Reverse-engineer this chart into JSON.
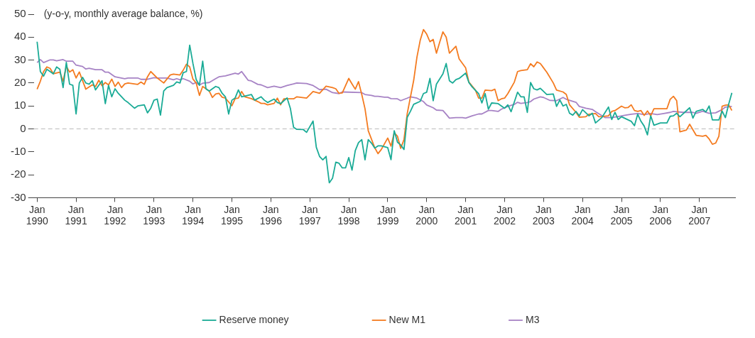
{
  "chart_data": {
    "type": "line",
    "ylabel": "(y-o-y, monthly average balance, %)",
    "xlim": [
      "1989-12",
      "2007-12"
    ],
    "xticks": [
      {
        "value": "1990-01",
        "label": "Jan 1990"
      },
      {
        "value": "1991-01",
        "label": "Jan 1991"
      },
      {
        "value": "1992-01",
        "label": "Jan 1992"
      },
      {
        "value": "1993-01",
        "label": "Jan 1993"
      },
      {
        "value": "1994-01",
        "label": "Jan 1994"
      },
      {
        "value": "1995-01",
        "label": "Jan 1995"
      },
      {
        "value": "1996-01",
        "label": "Jan 1996"
      },
      {
        "value": "1997-01",
        "label": "Jan 1997"
      },
      {
        "value": "1998-01",
        "label": "Jan 1998"
      },
      {
        "value": "1999-01",
        "label": "Jan 1999"
      },
      {
        "value": "2000-01",
        "label": "Jan 2000"
      },
      {
        "value": "2001-01",
        "label": "Jan 2001"
      },
      {
        "value": "2002-01",
        "label": "Jan 2002"
      },
      {
        "value": "2003-01",
        "label": "Jan 2003"
      },
      {
        "value": "2004-01",
        "label": "Jan 2004"
      },
      {
        "value": "2005-01",
        "label": "Jan 2005"
      },
      {
        "value": "2006-01",
        "label": "Jan 2006"
      },
      {
        "value": "2007-01",
        "label": "Jan 2007"
      }
    ],
    "ylim": [
      -30,
      50
    ],
    "yticks": [
      -30,
      -20,
      -10,
      0,
      10,
      20,
      30,
      40,
      50
    ],
    "grid": false,
    "legend": "bottom",
    "ref_lines": [
      {
        "axis": "y",
        "value": 0,
        "color": "#bbbbbb",
        "line_style": "dashed"
      }
    ],
    "series": [
      {
        "name": "Reserve money",
        "color": "#1aab96",
        "x": [
          "1990-01",
          "1990-02",
          "1990-03",
          "1990-04",
          "1990-06",
          "1990-07",
          "1990-08",
          "1990-09",
          "1990-10",
          "1990-11",
          "1990-12",
          "1991-01",
          "1991-02",
          "1991-03",
          "1991-04",
          "1991-05",
          "1991-06",
          "1991-07",
          "1991-09",
          "1991-10",
          "1991-11",
          "1991-12",
          "1992-01",
          "1992-02",
          "1992-04",
          "1992-05",
          "1992-07",
          "1992-08",
          "1992-10",
          "1992-11",
          "1992-12",
          "1993-01",
          "1993-02",
          "1993-03",
          "1993-04",
          "1993-05",
          "1993-07",
          "1993-08",
          "1993-09",
          "1993-10",
          "1993-11",
          "1993-12",
          "1994-01",
          "1994-02",
          "1994-03",
          "1994-04",
          "1994-05",
          "1994-06",
          "1994-08",
          "1994-09",
          "1994-10",
          "1994-11",
          "1994-12",
          "1995-01",
          "1995-02",
          "1995-03",
          "1995-04",
          "1995-07",
          "1995-08",
          "1995-10",
          "1995-11",
          "1995-12",
          "1996-02",
          "1996-03",
          "1996-04",
          "1996-06",
          "1996-07",
          "1996-08",
          "1996-09",
          "1996-11",
          "1996-12",
          "1997-02",
          "1997-03",
          "1997-04",
          "1997-05",
          "1997-06",
          "1997-07",
          "1997-08",
          "1997-09",
          "1997-10",
          "1997-11",
          "1997-12",
          "1998-01",
          "1998-02",
          "1998-03",
          "1998-04",
          "1998-05",
          "1998-06",
          "1998-07",
          "1998-08",
          "1998-09",
          "1998-10",
          "1998-11",
          "1999-01",
          "1999-02",
          "1999-03",
          "1999-04",
          "1999-05",
          "1999-06",
          "1999-07",
          "1999-08",
          "1999-09",
          "1999-11",
          "1999-12",
          "2000-01",
          "2000-02",
          "2000-03",
          "2000-04",
          "2000-06",
          "2000-07",
          "2000-08",
          "2000-09",
          "2000-10",
          "2000-11",
          "2001-01",
          "2001-02",
          "2001-03",
          "2001-05",
          "2001-06",
          "2001-07",
          "2001-08",
          "2001-09",
          "2001-11",
          "2001-12",
          "2002-01",
          "2002-02",
          "2002-03",
          "2002-05",
          "2002-06",
          "2002-07",
          "2002-08",
          "2002-09",
          "2002-10",
          "2002-11",
          "2002-12",
          "2003-02",
          "2003-04",
          "2003-05",
          "2003-06",
          "2003-07",
          "2003-08",
          "2003-09",
          "2003-10",
          "2003-11",
          "2003-12",
          "2004-01",
          "2004-03",
          "2004-04",
          "2004-05",
          "2004-07",
          "2004-09",
          "2004-10",
          "2004-11",
          "2004-12",
          "2005-01",
          "2005-04",
          "2005-05",
          "2005-06",
          "2005-07",
          "2005-08",
          "2005-09",
          "2005-10",
          "2005-11",
          "2006-01",
          "2006-03",
          "2006-04",
          "2006-05",
          "2006-06",
          "2006-07",
          "2006-10",
          "2006-11",
          "2006-12",
          "2007-02",
          "2007-03",
          "2007-04",
          "2007-05",
          "2007-07",
          "2007-08",
          "2007-09",
          "2007-10",
          "2007-11"
        ],
        "values": [
          38,
          25,
          23,
          26,
          24,
          27,
          26,
          18,
          29,
          19.5,
          19,
          6.5,
          20,
          22.5,
          20,
          19.5,
          21,
          17,
          21,
          11,
          19,
          14,
          17.5,
          15.5,
          12.5,
          11.5,
          9,
          10,
          10.5,
          7,
          9,
          12.5,
          13,
          6,
          16.5,
          18,
          19,
          20.5,
          20,
          24.5,
          25,
          36.5,
          28.5,
          21.5,
          19,
          29.5,
          17.5,
          16.5,
          18.5,
          18,
          15.5,
          14,
          6.5,
          12.5,
          13.5,
          17,
          14,
          15,
          12.5,
          14,
          12.5,
          11.5,
          13,
          11.5,
          11,
          13.5,
          9,
          0.7,
          -0.2,
          -0.3,
          -1.5,
          3.4,
          -8,
          -12,
          -13.5,
          -12,
          -23.5,
          -21.5,
          -14.5,
          -15,
          -17,
          -17,
          -12.5,
          -18,
          -9.5,
          -6,
          -4.7,
          -13.5,
          -4.7,
          -6.2,
          -8.4,
          -7.4,
          -7.4,
          -8.2,
          -13.4,
          -0.8,
          -5.8,
          -7,
          -9,
          5,
          7.7,
          10.7,
          12,
          15.4,
          16,
          22,
          12.3,
          19.5,
          24,
          28.5,
          21,
          20,
          21.5,
          22,
          24.3,
          20.2,
          18.3,
          15.4,
          11.3,
          15.4,
          8.6,
          11.3,
          11,
          10,
          9,
          10.5,
          7.5,
          16,
          14,
          14,
          7.2,
          20.2,
          17.5,
          17,
          17.7,
          15,
          15.2,
          9.8,
          12.6,
          10,
          10.7,
          6.8,
          6,
          7.6,
          5.7,
          8.4,
          5.7,
          6.8,
          2.6,
          5,
          9.5,
          4.1,
          7.2,
          4.1,
          5.3,
          3.3,
          1.4,
          6.4,
          3.3,
          1.2,
          -2.6,
          5.7,
          1.6,
          2.6,
          2.6,
          5.5,
          5.7,
          6.8,
          5.3,
          9.2,
          4.7,
          7.6,
          8.5,
          7.4,
          10,
          3.9,
          3.9,
          7.8,
          4.9,
          10.7,
          15.7
        ]
      },
      {
        "name": "New M1",
        "color": "#f47b20",
        "x": [
          "1990-01",
          "1990-02",
          "1990-03",
          "1990-04",
          "1990-05",
          "1990-06",
          "1990-08",
          "1990-09",
          "1990-10",
          "1990-11",
          "1990-12",
          "1991-01",
          "1991-02",
          "1991-04",
          "1991-06",
          "1991-07",
          "1991-08",
          "1991-09",
          "1991-10",
          "1991-11",
          "1991-12",
          "1992-01",
          "1992-02",
          "1992-03",
          "1992-04",
          "1992-05",
          "1992-08",
          "1992-09",
          "1992-10",
          "1992-11",
          "1992-12",
          "1993-02",
          "1993-04",
          "1993-06",
          "1993-07",
          "1993-09",
          "1993-10",
          "1993-11",
          "1993-12",
          "1994-01",
          "1994-02",
          "1994-03",
          "1994-04",
          "1994-06",
          "1994-07",
          "1994-08",
          "1994-09",
          "1994-10",
          "1994-11",
          "1995-01",
          "1995-02",
          "1995-03",
          "1995-04",
          "1995-05",
          "1995-07",
          "1995-09",
          "1995-10",
          "1995-11",
          "1995-12",
          "1996-02",
          "1996-03",
          "1996-04",
          "1996-05",
          "1996-08",
          "1996-09",
          "1996-12",
          "1997-02",
          "1997-04",
          "1997-06",
          "1997-08",
          "1997-09",
          "1997-10",
          "1997-11",
          "1998-01",
          "1998-02",
          "1998-03",
          "1998-04",
          "1998-05",
          "1998-06",
          "1998-07",
          "1998-09",
          "1998-10",
          "1998-11",
          "1999-01",
          "1999-02",
          "1999-03",
          "1999-04",
          "1999-05",
          "1999-06",
          "1999-07",
          "1999-09",
          "1999-10",
          "1999-11",
          "1999-12",
          "2000-01",
          "2000-02",
          "2000-03",
          "2000-04",
          "2000-05",
          "2000-06",
          "2000-07",
          "2000-08",
          "2000-10",
          "2000-11",
          "2001-01",
          "2001-02",
          "2001-04",
          "2001-05",
          "2001-06",
          "2001-07",
          "2001-09",
          "2001-10",
          "2001-11",
          "2001-12",
          "2002-01",
          "2002-02",
          "2002-04",
          "2002-05",
          "2002-06",
          "2002-08",
          "2002-09",
          "2002-10",
          "2002-11",
          "2002-12",
          "2003-02",
          "2003-04",
          "2003-05",
          "2003-07",
          "2003-08",
          "2003-09",
          "2003-11",
          "2003-12",
          "2004-02",
          "2004-03",
          "2004-05",
          "2004-06",
          "2004-07",
          "2004-09",
          "2004-10",
          "2004-11",
          "2005-01",
          "2005-02",
          "2005-03",
          "2005-04",
          "2005-05",
          "2005-06",
          "2005-07",
          "2005-08",
          "2005-09",
          "2005-10",
          "2005-11",
          "2006-01",
          "2006-03",
          "2006-04",
          "2006-05",
          "2006-06",
          "2006-07",
          "2006-09",
          "2006-10",
          "2006-12",
          "2007-02",
          "2007-03",
          "2007-04",
          "2007-05",
          "2007-06",
          "2007-07",
          "2007-08",
          "2007-09",
          "2007-10",
          "2007-11"
        ],
        "values": [
          17.3,
          20.8,
          25,
          27,
          26.4,
          24,
          24.7,
          20.8,
          27.3,
          24.8,
          25.8,
          22.2,
          24.8,
          17.3,
          19.2,
          18.5,
          21.2,
          18.8,
          20.2,
          19.2,
          21.7,
          18.5,
          20.4,
          18,
          19.6,
          20,
          19.4,
          20.4,
          19.4,
          22.7,
          25,
          22.2,
          20,
          23.5,
          23.9,
          23.5,
          25.6,
          28.2,
          27,
          21.7,
          20,
          14.6,
          18.5,
          16.5,
          13.7,
          15.2,
          15.5,
          13.8,
          13.4,
          10.1,
          13.2,
          13.4,
          16.3,
          14,
          13.2,
          11.9,
          11.1,
          11.1,
          10.5,
          11.1,
          13.4,
          10.5,
          13.1,
          13.1,
          14,
          13.4,
          16.3,
          15.5,
          18.6,
          18,
          17.5,
          15.5,
          15.7,
          22,
          19.6,
          17.3,
          20.6,
          15,
          8.8,
          -0.8,
          -8.2,
          -10.8,
          -9,
          -4,
          -7.5,
          -1.7,
          -3.2,
          -8.5,
          -4.7,
          6.6,
          21.2,
          31.3,
          38.6,
          43.3,
          41.3,
          38,
          39,
          33,
          37.8,
          42.3,
          40,
          33,
          36,
          30.5,
          26.6,
          20.4,
          16.9,
          13.4,
          13.4,
          16.9,
          16.7,
          17.3,
          12.3,
          13.1,
          13.4,
          15.4,
          20.4,
          25,
          25.4,
          25.8,
          28.4,
          27.1,
          29.2,
          28.5,
          24.7,
          20,
          16.9,
          16.1,
          15,
          10.5,
          7.2,
          5.1,
          5.3,
          6.4,
          6.7,
          5.3,
          5.4,
          5.7,
          7.6,
          8,
          9.9,
          9.2,
          9.3,
          10.5,
          8,
          7.6,
          8,
          5.9,
          7.8,
          5.7,
          8.8,
          8.8,
          8.8,
          12.9,
          14.2,
          12.3,
          -1.3,
          -0.5,
          2,
          -2.8,
          -3.2,
          -2.8,
          -4.4,
          -6.7,
          -6.2,
          -3.2,
          9.9,
          10.3,
          10.5,
          8
        ]
      },
      {
        "name": "M3",
        "color": "#a783c5",
        "x": [
          "1990-01",
          "1990-02",
          "1990-03",
          "1990-05",
          "1990-06",
          "1990-07",
          "1990-09",
          "1990-10",
          "1990-12",
          "1991-01",
          "1991-03",
          "1991-04",
          "1991-05",
          "1991-07",
          "1991-09",
          "1991-10",
          "1991-11",
          "1992-01",
          "1992-04",
          "1992-05",
          "1992-08",
          "1992-09",
          "1992-11",
          "1993-01",
          "1993-02",
          "1993-05",
          "1993-07",
          "1993-08",
          "1993-09",
          "1993-10",
          "1993-12",
          "1994-01",
          "1994-02",
          "1994-03",
          "1994-04",
          "1994-06",
          "1994-08",
          "1994-09",
          "1994-11",
          "1995-02",
          "1995-03",
          "1995-04",
          "1995-05",
          "1995-06",
          "1995-07",
          "1995-09",
          "1995-10",
          "1995-12",
          "1996-02",
          "1996-03",
          "1996-04",
          "1996-06",
          "1996-08",
          "1996-09",
          "1996-12",
          "1997-02",
          "1997-03",
          "1997-04",
          "1997-06",
          "1997-08",
          "1997-10",
          "1997-11",
          "1998-05",
          "1998-06",
          "1998-08",
          "1998-09",
          "1998-10",
          "1998-12",
          "1999-01",
          "1999-02",
          "1999-04",
          "1999-05",
          "1999-07",
          "1999-08",
          "1999-10",
          "1999-12",
          "2000-01",
          "2000-03",
          "2000-04",
          "2000-06",
          "2000-07",
          "2000-08",
          "2000-10",
          "2000-12",
          "2001-01",
          "2001-03",
          "2001-05",
          "2001-06",
          "2001-08",
          "2001-09",
          "2001-11",
          "2001-12",
          "2002-02",
          "2002-04",
          "2002-05",
          "2002-06",
          "2002-08",
          "2002-09",
          "2002-10",
          "2002-12",
          "2003-01",
          "2003-03",
          "2003-05",
          "2003-07",
          "2003-08",
          "2003-11",
          "2003-12",
          "2004-02",
          "2004-04",
          "2004-05",
          "2004-07",
          "2004-08",
          "2004-10",
          "2004-12",
          "2005-02",
          "2005-04",
          "2005-06",
          "2005-08",
          "2005-10",
          "2005-12",
          "2006-02",
          "2006-04",
          "2006-05",
          "2006-08",
          "2006-11",
          "2006-12",
          "2007-02",
          "2007-04",
          "2007-06",
          "2007-08",
          "2007-09",
          "2007-11"
        ],
        "values": [
          28.9,
          30.2,
          28.9,
          30.1,
          30.1,
          29.7,
          30.2,
          29.5,
          29.5,
          27.8,
          27.2,
          26.1,
          26.4,
          25.8,
          25.8,
          24.7,
          24.7,
          22.7,
          21.9,
          22.2,
          22.2,
          21.6,
          21.6,
          22.3,
          22.2,
          22.2,
          21.4,
          21.9,
          21.4,
          21.9,
          20.8,
          19.6,
          20.2,
          19.1,
          19.9,
          20.2,
          21.9,
          22.7,
          23.1,
          24.3,
          23.9,
          25,
          23.1,
          21.2,
          20.9,
          19.4,
          19.2,
          18,
          18.6,
          18.3,
          18,
          18.9,
          19.6,
          20,
          19.8,
          18.9,
          18,
          17.1,
          17.3,
          15.8,
          15.4,
          16.1,
          15.8,
          15,
          14.6,
          14.2,
          14.2,
          13.8,
          13.8,
          13.2,
          13.1,
          12.3,
          13.4,
          14,
          13.4,
          11.9,
          10.4,
          9.2,
          8.2,
          8,
          6.4,
          4.7,
          4.9,
          4.9,
          4.7,
          5.7,
          6.5,
          6.5,
          8,
          8,
          7.6,
          8.6,
          9.8,
          10.7,
          11.6,
          11.1,
          11.5,
          11.9,
          13,
          14,
          13.7,
          12.4,
          12.3,
          13.7,
          12.9,
          11.6,
          9.8,
          9,
          8.5,
          7.5,
          5.7,
          4.9,
          4.9,
          5.4,
          5.9,
          6.4,
          6.7,
          6.2,
          6.7,
          6.2,
          6.7,
          7.2,
          7.6,
          7.2,
          7.2,
          6.8,
          7.7,
          6.8,
          7,
          8.4,
          9.5,
          9.8
        ]
      }
    ]
  }
}
